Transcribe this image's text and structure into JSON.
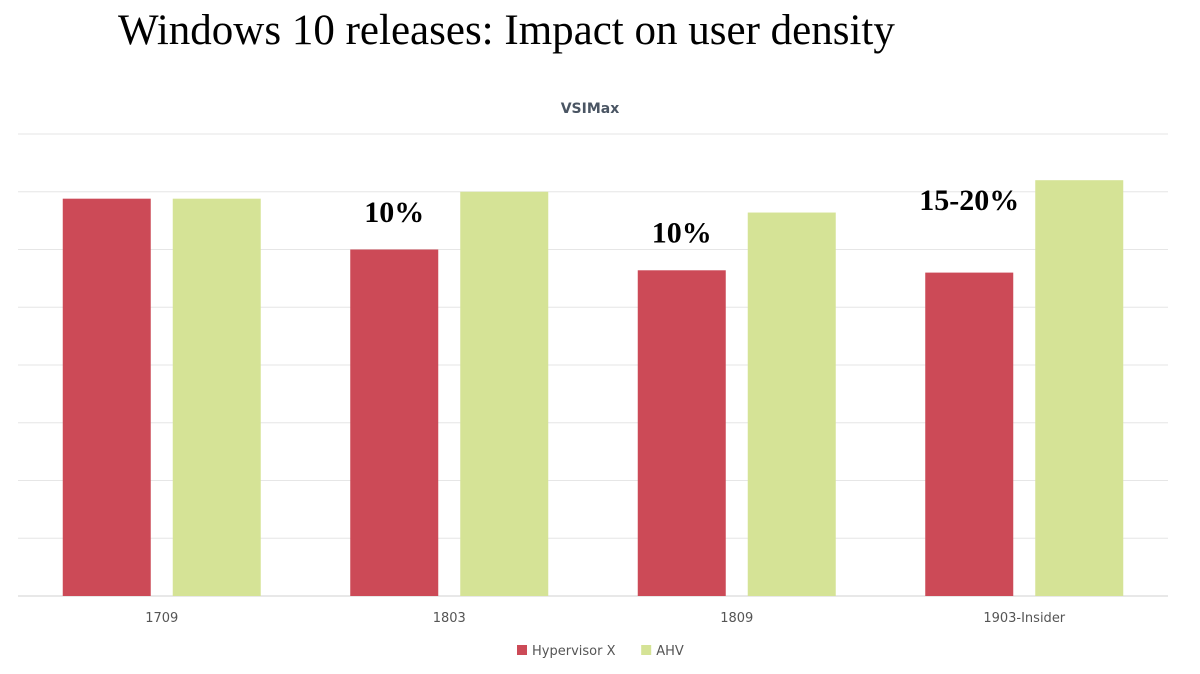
{
  "slide": {
    "title": "Windows 10 releases: Impact on user density"
  },
  "colors": {
    "hypervisor_x": "#cc4a57",
    "ahv": "#d5e396",
    "grid": "#e6e6e6",
    "axis": "#d0d0d0"
  },
  "chart_data": {
    "type": "bar",
    "title": "VSIMax",
    "xlabel": "",
    "ylabel": "",
    "categories": [
      "1709",
      "1803",
      "1809",
      "1903-Insider"
    ],
    "series": [
      {
        "name": "Hypervisor X",
        "values": [
          172,
          150,
          141,
          140
        ]
      },
      {
        "name": "AHV",
        "values": [
          172,
          175,
          166,
          180
        ]
      }
    ],
    "ylim": [
      0,
      200
    ],
    "y_gridline_step": 25,
    "y_tick_labels_shown": false,
    "grid": true,
    "legend": "bottom-center",
    "annotations": [
      {
        "category": "1803",
        "text": "10%"
      },
      {
        "category": "1809",
        "text": "10%"
      },
      {
        "category": "1903-Insider",
        "text": "15-20%"
      }
    ]
  }
}
